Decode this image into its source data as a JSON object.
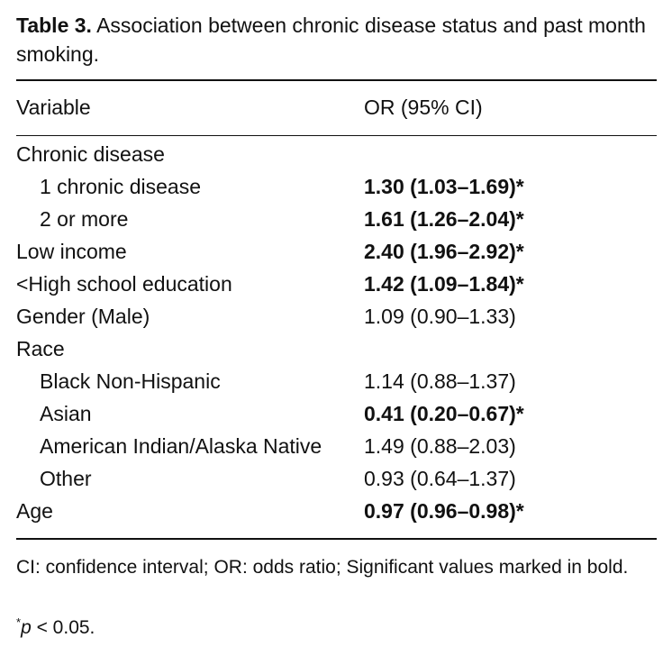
{
  "table": {
    "label": "Table 3.",
    "title": "Association between chronic disease status and past month smoking.",
    "headers": {
      "variable": "Variable",
      "or": "OR (95% CI)"
    },
    "rows": [
      {
        "variable": "Chronic disease",
        "or": "",
        "indent": false,
        "bold": false
      },
      {
        "variable": "1 chronic disease",
        "or": "1.30 (1.03–1.69)*",
        "indent": true,
        "bold": true
      },
      {
        "variable": "2 or more",
        "or": "1.61 (1.26–2.04)*",
        "indent": true,
        "bold": true
      },
      {
        "variable": "Low income",
        "or": "2.40 (1.96–2.92)*",
        "indent": false,
        "bold": true
      },
      {
        "variable": "<High school education",
        "or": "1.42 (1.09–1.84)*",
        "indent": false,
        "bold": true
      },
      {
        "variable": "Gender (Male)",
        "or": "1.09 (0.90–1.33)",
        "indent": false,
        "bold": false
      },
      {
        "variable": "Race",
        "or": "",
        "indent": false,
        "bold": false
      },
      {
        "variable": "Black Non-Hispanic",
        "or": "1.14 (0.88–1.37)",
        "indent": true,
        "bold": false
      },
      {
        "variable": "Asian",
        "or": "0.41 (0.20–0.67)*",
        "indent": true,
        "bold": true
      },
      {
        "variable": "American Indian/Alaska Native",
        "or": "1.49 (0.88–2.03)",
        "indent": true,
        "bold": false
      },
      {
        "variable": "Other",
        "or": "0.93 (0.64–1.37)",
        "indent": true,
        "bold": false
      },
      {
        "variable": "Age",
        "or": "0.97 (0.96–0.98)*",
        "indent": false,
        "bold": true
      }
    ],
    "footnote_1": "CI: confidence interval; OR: odds ratio; Significant values marked in bold.",
    "footnote_2": {
      "marker": "*",
      "p": "p",
      "rest": " < 0.05."
    }
  }
}
